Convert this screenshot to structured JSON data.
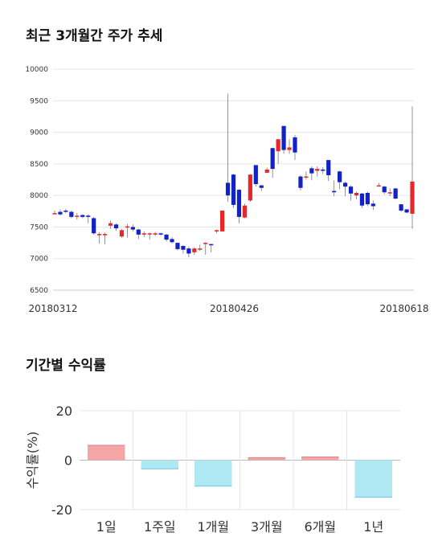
{
  "section1_title": "최근 3개월간 주가 추세",
  "section2_title": "기간별 수익률",
  "colors": {
    "up": "#e8272a",
    "down": "#1123c7",
    "positive_bar": "#f4a6a6",
    "negative_bar": "#aee8f2",
    "grid": "#e5e5e5"
  },
  "chart_data": [
    {
      "type": "candlestick",
      "title": "최근 3개월간 주가 추세",
      "ylim": [
        6500,
        10000
      ],
      "yticks": [
        "10000",
        "9500",
        "9000",
        "8500",
        "8000",
        "7500",
        "7000",
        "6500"
      ],
      "x_tick_labels": [
        "20180312",
        "20180426",
        "20180618"
      ],
      "grid": true,
      "candles": [
        [
          7720,
          7720,
          7760,
          7700
        ],
        [
          7740,
          7700,
          7780,
          7680
        ],
        [
          7760,
          7740,
          7790,
          7720
        ],
        [
          7740,
          7660,
          7760,
          7640
        ],
        [
          7680,
          7680,
          7720,
          7620
        ],
        [
          7690,
          7660,
          7700,
          7640
        ],
        [
          7680,
          7660,
          7700,
          7560
        ],
        [
          7640,
          7400,
          7660,
          7380
        ],
        [
          7370,
          7390,
          7420,
          7240
        ],
        [
          7370,
          7390,
          7410,
          7230
        ],
        [
          7520,
          7560,
          7600,
          7470
        ],
        [
          7540,
          7480,
          7560,
          7440
        ],
        [
          7350,
          7450,
          7470,
          7330
        ],
        [
          7510,
          7510,
          7550,
          7330
        ],
        [
          7500,
          7460,
          7540,
          7430
        ],
        [
          7460,
          7380,
          7470,
          7310
        ],
        [
          7380,
          7400,
          7430,
          7340
        ],
        [
          7400,
          7400,
          7410,
          7300
        ],
        [
          7400,
          7400,
          7420,
          7360
        ],
        [
          7400,
          7380,
          7410,
          7360
        ],
        [
          7380,
          7300,
          7390,
          7270
        ],
        [
          7310,
          7260,
          7340,
          7240
        ],
        [
          7250,
          7150,
          7250,
          7130
        ],
        [
          7200,
          7140,
          7210,
          7080
        ],
        [
          7160,
          7080,
          7190,
          7020
        ],
        [
          7100,
          7160,
          7180,
          7060
        ],
        [
          7150,
          7160,
          7220,
          7120
        ],
        [
          7230,
          7250,
          7260,
          7060
        ],
        [
          7230,
          7220,
          7230,
          7100
        ],
        [
          7430,
          7450,
          7460,
          7400
        ],
        [
          7430,
          7760,
          7760,
          7430
        ],
        [
          8200,
          8000,
          9610,
          7900
        ],
        [
          8330,
          7850,
          8340,
          7800
        ],
        [
          8090,
          7660,
          8100,
          7560
        ],
        [
          7650,
          7840,
          7870,
          7640
        ],
        [
          7920,
          8330,
          8340,
          7900
        ],
        [
          8480,
          8180,
          8480,
          8140
        ],
        [
          8160,
          8120,
          8160,
          8070
        ],
        [
          8360,
          8410,
          8440,
          8360
        ],
        [
          8750,
          8420,
          8750,
          8280
        ],
        [
          8700,
          8890,
          8890,
          8500
        ],
        [
          9100,
          8720,
          9100,
          8660
        ],
        [
          8720,
          8760,
          8890,
          8660
        ],
        [
          8920,
          8680,
          8960,
          8560
        ],
        [
          8300,
          8120,
          8320,
          8080
        ],
        [
          8300,
          8300,
          8380,
          8250
        ],
        [
          8430,
          8350,
          8460,
          8240
        ],
        [
          8390,
          8420,
          8460,
          8300
        ],
        [
          8410,
          8390,
          8450,
          8340
        ],
        [
          8560,
          8320,
          8560,
          8230
        ],
        [
          8070,
          8050,
          8240,
          7990
        ],
        [
          8380,
          8210,
          8390,
          8100
        ],
        [
          8200,
          8140,
          8220,
          7990
        ],
        [
          8140,
          8030,
          8160,
          7920
        ],
        [
          8000,
          8040,
          8060,
          7940
        ],
        [
          8030,
          7840,
          8040,
          7800
        ],
        [
          8040,
          7860,
          8060,
          7830
        ],
        [
          7870,
          7830,
          7920,
          7770
        ],
        [
          8160,
          8160,
          8200,
          8140
        ],
        [
          8140,
          8050,
          8150,
          8020
        ],
        [
          8040,
          8050,
          8110,
          7990
        ],
        [
          8110,
          7950,
          8120,
          7940
        ],
        [
          7860,
          7760,
          7860,
          7740
        ],
        [
          7780,
          7730,
          7780,
          7720
        ],
        [
          7710,
          8220,
          9410,
          7470
        ]
      ]
    },
    {
      "type": "bar",
      "title": "기간별 수익률",
      "ylabel": "수익률(%)",
      "ylim": [
        -20,
        20
      ],
      "yticks": [
        "20",
        "0",
        "-20"
      ],
      "categories": [
        "1일",
        "1주일",
        "1개월",
        "3개월",
        "6개월",
        "1년"
      ],
      "values": [
        6,
        -3.5,
        -10.5,
        1,
        1.3,
        -15
      ],
      "grid": true
    }
  ]
}
